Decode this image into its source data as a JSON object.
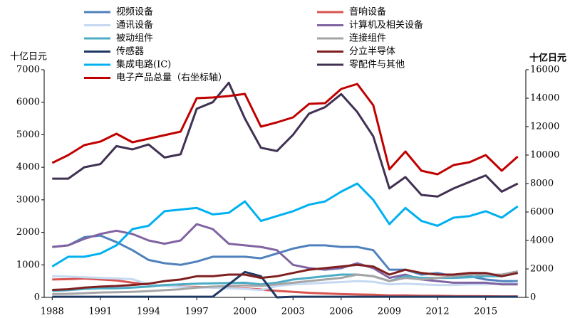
{
  "chart_data": {
    "type": "line",
    "y_label": "十亿日元",
    "y2_label": "十亿日元",
    "x": [
      1988,
      1989,
      1990,
      1991,
      1992,
      1993,
      1994,
      1995,
      1996,
      1997,
      1998,
      1999,
      2000,
      2001,
      2002,
      2003,
      2004,
      2005,
      2006,
      2007,
      2008,
      2009,
      2010,
      2011,
      2012,
      2013,
      2014,
      2015,
      2016,
      2017
    ],
    "xlim": [
      1987.5,
      2017.5
    ],
    "xticks": [
      1988,
      1991,
      1994,
      1997,
      2000,
      2003,
      2006,
      2009,
      2012,
      2015
    ],
    "ylim": [
      0,
      7000
    ],
    "yticks": [
      0,
      1000,
      2000,
      3000,
      4000,
      5000,
      6000,
      7000
    ],
    "y2lim": [
      0,
      16000
    ],
    "y2ticks": [
      0,
      2000,
      4000,
      6000,
      8000,
      10000,
      12000,
      14000,
      16000
    ],
    "grid": false,
    "series": [
      {
        "name": "视频设备",
        "color": "#4f81bd",
        "values": [
          1550,
          1600,
          1850,
          1900,
          1700,
          1450,
          1150,
          1050,
          1000,
          1100,
          1250,
          1250,
          1250,
          1200,
          1350,
          1500,
          1600,
          1600,
          1550,
          1550,
          1450,
          850,
          850,
          700,
          750,
          650,
          650,
          550,
          500,
          500
        ]
      },
      {
        "name": "音响设备",
        "color": "#d9534f",
        "values": [
          550,
          560,
          580,
          550,
          520,
          450,
          400,
          350,
          330,
          320,
          300,
          290,
          280,
          240,
          200,
          170,
          140,
          120,
          100,
          90,
          80,
          60,
          60,
          50,
          50,
          40,
          40,
          35,
          30,
          30
        ]
      },
      {
        "name": "通讯设备",
        "color": "#c6d9f1",
        "values": [
          650,
          640,
          620,
          600,
          580,
          560,
          400,
          350,
          320,
          300,
          300,
          280,
          260,
          220,
          350,
          400,
          420,
          450,
          470,
          500,
          480,
          400,
          420,
          400,
          380,
          380,
          400,
          400,
          420,
          450
        ]
      },
      {
        "name": "计算机及相关设备",
        "color": "#8064a2",
        "values": [
          1550,
          1600,
          1800,
          1950,
          2050,
          1950,
          1750,
          1650,
          1750,
          2250,
          2100,
          1650,
          1600,
          1550,
          1450,
          1000,
          900,
          850,
          900,
          1050,
          900,
          600,
          700,
          550,
          500,
          450,
          450,
          450,
          400,
          400
        ]
      },
      {
        "name": "被动组件",
        "color": "#4bacc6",
        "values": [
          200,
          220,
          260,
          280,
          280,
          300,
          330,
          380,
          400,
          420,
          430,
          440,
          450,
          400,
          450,
          550,
          600,
          650,
          700,
          700,
          650,
          500,
          650,
          600,
          600,
          600,
          620,
          650,
          650,
          750
        ]
      },
      {
        "name": "连接组件",
        "color": "#a5a5a5",
        "values": [
          100,
          110,
          130,
          150,
          160,
          170,
          190,
          220,
          250,
          300,
          330,
          350,
          370,
          350,
          400,
          450,
          500,
          550,
          600,
          700,
          650,
          500,
          600,
          550,
          600,
          650,
          700,
          700,
          700,
          800
        ]
      },
      {
        "name": "传感器",
        "color": "#1f3864",
        "values": [
          20,
          20,
          20,
          20,
          20,
          20,
          20,
          20,
          20,
          20,
          20,
          400,
          780,
          650,
          0,
          20,
          20,
          20,
          20,
          20,
          20,
          20,
          20,
          20,
          20,
          20,
          20,
          20,
          20,
          20
        ]
      },
      {
        "name": "分立半导体",
        "color": "#7f2020",
        "values": [
          230,
          250,
          300,
          330,
          350,
          380,
          420,
          500,
          550,
          650,
          650,
          700,
          700,
          600,
          650,
          750,
          850,
          900,
          950,
          1000,
          950,
          700,
          850,
          750,
          700,
          700,
          750,
          750,
          650,
          750
        ]
      },
      {
        "name": "集成电路(IC)",
        "color": "#00b0f0",
        "values": [
          950,
          1250,
          1250,
          1350,
          1600,
          2100,
          2200,
          2650,
          2700,
          2750,
          2550,
          2600,
          2950,
          2350,
          2500,
          2650,
          2850,
          2950,
          3250,
          3500,
          3000,
          2250,
          2750,
          2350,
          2200,
          2450,
          2500,
          2650,
          2450,
          2800
        ]
      },
      {
        "name": "零配件与其他",
        "color": "#403152",
        "values": [
          3650,
          3650,
          4000,
          4100,
          4650,
          4550,
          4700,
          4300,
          4400,
          5800,
          6000,
          6600,
          5500,
          4600,
          4500,
          5000,
          5650,
          5850,
          6250,
          5700,
          4950,
          3350,
          3700,
          3150,
          3100,
          3350,
          3550,
          3750,
          3250,
          3500
        ]
      },
      {
        "name": "电子产品总量（右坐标轴）",
        "color": "#c00000",
        "axis": "y2",
        "values": [
          9450,
          10000,
          10700,
          10950,
          11500,
          10900,
          11150,
          11400,
          11650,
          14000,
          14050,
          14150,
          14300,
          12000,
          12300,
          12650,
          13600,
          13650,
          14650,
          15000,
          13500,
          9000,
          10250,
          8900,
          8650,
          9300,
          9500,
          10000,
          8900,
          9900
        ]
      }
    ]
  }
}
